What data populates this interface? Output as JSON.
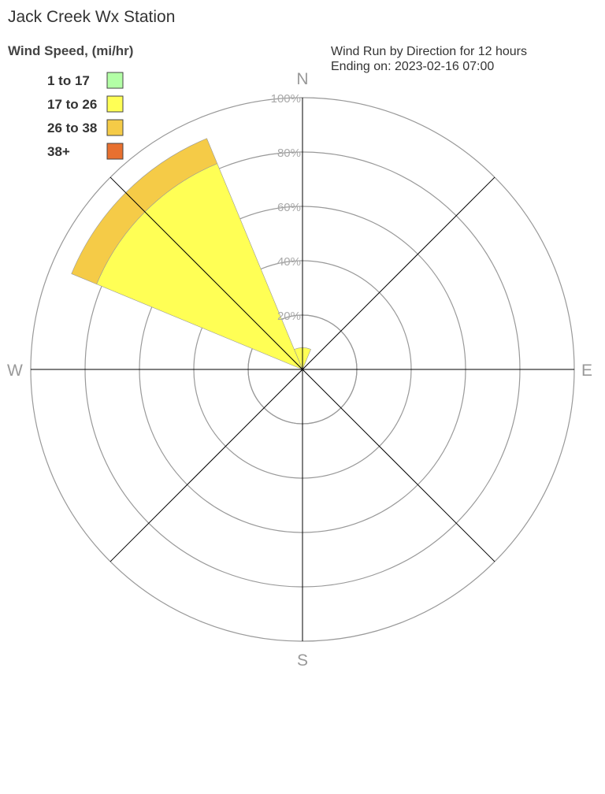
{
  "title": "Jack Creek Wx Station",
  "subtitle_lines": [
    "Wind Run by Direction for 12 hours",
    "Ending on: 2023-02-16 07:00"
  ],
  "chart_data": {
    "type": "wind-rose",
    "legend_title": "Wind Speed, (mi/hr)",
    "legend_position": "top-left",
    "speed_bins": [
      {
        "label": "1 to 17",
        "color": "#b3ffa6"
      },
      {
        "label": "17 to 26",
        "color": "#ffff55"
      },
      {
        "label": "26 to 38",
        "color": "#f5cb47"
      },
      {
        "label": "38+",
        "color": "#e8702f"
      }
    ],
    "cardinal_labels": [
      "N",
      "E",
      "S",
      "W"
    ],
    "radial_ticks": [
      "20%",
      "40%",
      "60%",
      "80%",
      "100%"
    ],
    "radial_max_percent": 100,
    "sector_width_deg": 45,
    "sectors": [
      {
        "direction": "N",
        "bearing": 0,
        "percent_by_bin": [
          0,
          8,
          0,
          0
        ]
      },
      {
        "direction": "NW",
        "bearing": 315,
        "percent_by_bin": [
          0,
          82,
          10,
          0
        ]
      }
    ]
  }
}
